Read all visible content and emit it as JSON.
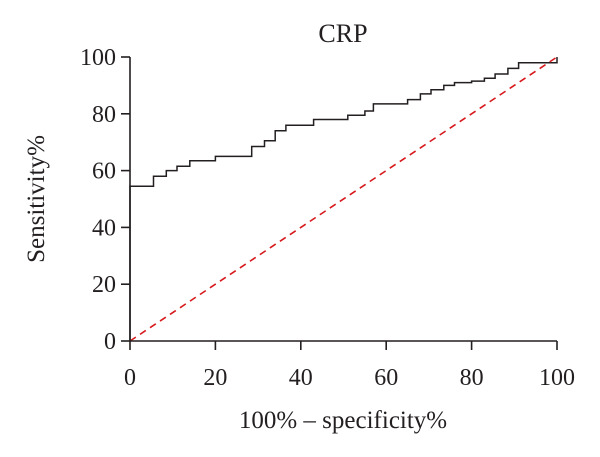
{
  "chart_data": {
    "type": "line",
    "title": "CRP",
    "xlabel": "100% – specificity%",
    "ylabel": "Sensitivity%",
    "xlim": [
      0,
      100
    ],
    "ylim": [
      0,
      100
    ],
    "x_ticks": [
      "0",
      "20",
      "40",
      "60",
      "80",
      "100"
    ],
    "y_ticks": [
      "0",
      "20",
      "40",
      "60",
      "80",
      "100"
    ],
    "grid": false,
    "legend": "none",
    "series": [
      {
        "style": "step",
        "color": "#231f20",
        "points": [
          [
            0,
            0
          ],
          [
            0,
            54.5
          ],
          [
            5.5,
            54.5
          ],
          [
            5.5,
            58
          ],
          [
            8.5,
            58
          ],
          [
            8.5,
            60
          ],
          [
            11,
            60
          ],
          [
            11,
            61.5
          ],
          [
            14,
            61.5
          ],
          [
            14,
            63.5
          ],
          [
            20,
            63.5
          ],
          [
            20,
            65
          ],
          [
            28.5,
            65
          ],
          [
            28.5,
            68.5
          ],
          [
            31.5,
            68.5
          ],
          [
            31.5,
            70.5
          ],
          [
            34,
            70.5
          ],
          [
            34,
            74
          ],
          [
            36.5,
            74
          ],
          [
            36.5,
            76
          ],
          [
            43,
            76
          ],
          [
            43,
            78
          ],
          [
            51,
            78
          ],
          [
            51,
            79.5
          ],
          [
            55,
            79.5
          ],
          [
            55,
            81
          ],
          [
            57,
            81
          ],
          [
            57,
            83.5
          ],
          [
            65,
            83.5
          ],
          [
            65,
            85
          ],
          [
            68,
            85
          ],
          [
            68,
            87
          ],
          [
            70.5,
            87
          ],
          [
            70.5,
            88.5
          ],
          [
            73.5,
            88.5
          ],
          [
            73.5,
            90
          ],
          [
            76,
            90
          ],
          [
            76,
            91
          ],
          [
            80,
            91
          ],
          [
            80,
            91.5
          ],
          [
            83,
            91.5
          ],
          [
            83,
            92.5
          ],
          [
            85.5,
            92.5
          ],
          [
            85.5,
            94
          ],
          [
            88.5,
            94
          ],
          [
            88.5,
            96
          ],
          [
            91,
            96
          ],
          [
            91,
            98
          ],
          [
            100,
            98
          ],
          [
            100,
            100
          ]
        ]
      },
      {
        "style": "dashed",
        "color": "#d7191c",
        "points": [
          [
            0,
            0
          ],
          [
            100,
            100
          ]
        ]
      }
    ]
  }
}
